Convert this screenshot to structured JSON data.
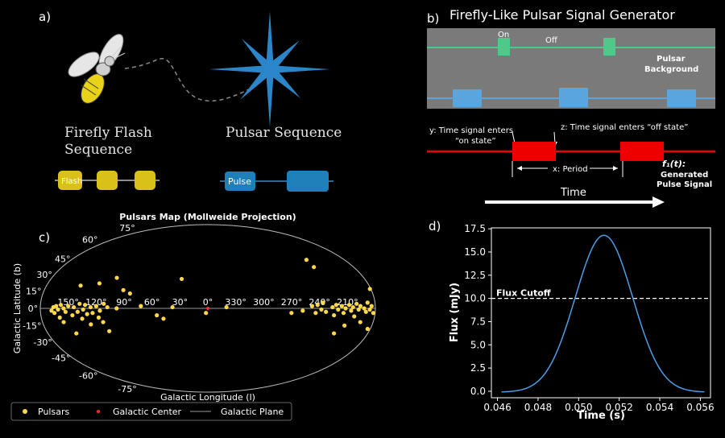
{
  "panel_a": {
    "label": "a)",
    "firefly_title_line1": "Firefly Flash",
    "firefly_title_line2": "Sequence",
    "pulsar_title": "Pulsar Sequence",
    "flash_label": "Flash",
    "pulse_label": "Pulse",
    "colors": {
      "flash": "#d9c11a",
      "pulse": "#1f7fb8",
      "star": "#2a86c9"
    }
  },
  "panel_b": {
    "label": "b)",
    "title": "Firefly-Like Pulsar Signal Generator",
    "on_label": "On",
    "off_label": "Off",
    "background_line1": "Pulsar",
    "background_line2": "Background",
    "y_line1": "y: Time signal enters",
    "y_line2": "“on state”",
    "z_label": "z: Time signal enters “off state”",
    "period_label": "x: Period",
    "f_label": "f₁(t):",
    "generated_line1": "Generated",
    "generated_line2": "Pulse Signal",
    "time_label": "Time",
    "colors": {
      "green": "#4fc98a",
      "blue": "#5aa6dc",
      "red": "#ee0000",
      "box": "#7a7a7a"
    }
  },
  "panel_c": {
    "label": "c)",
    "chart_data": {
      "type": "scatter",
      "title": "Pulsars Map (Mollweide Projection)",
      "xlabel": "Galactic Longitude (l)",
      "ylabel": "Galactic Latitude (b)",
      "lat_ticks": [
        "75°",
        "60°",
        "45°",
        "30°",
        "15°",
        "0°",
        "-15°",
        "-30°",
        "-45°",
        "-60°",
        "-75°"
      ],
      "lon_ticks": [
        "150°",
        "120°",
        "90°",
        "60°",
        "30°",
        "0°",
        "330°",
        "300°",
        "270°",
        "240°",
        "210°"
      ],
      "legend": [
        "Pulsars",
        "Galactic Center",
        "Galactic Plane"
      ],
      "pulsars": [
        {
          "l": 168,
          "b": -2
        },
        {
          "l": 166,
          "b": 1
        },
        {
          "l": 165,
          "b": -4
        },
        {
          "l": 163,
          "b": 2
        },
        {
          "l": 161,
          "b": -1
        },
        {
          "l": 160,
          "b": -8
        },
        {
          "l": 158,
          "b": 3
        },
        {
          "l": 157,
          "b": -12
        },
        {
          "l": 155,
          "b": 0
        },
        {
          "l": 153,
          "b": -3
        },
        {
          "l": 150,
          "b": 2
        },
        {
          "l": 148,
          "b": -22
        },
        {
          "l": 146,
          "b": -6
        },
        {
          "l": 144,
          "b": 1
        },
        {
          "l": 142,
          "b": 20
        },
        {
          "l": 140,
          "b": -3
        },
        {
          "l": 138,
          "b": 4
        },
        {
          "l": 136,
          "b": -9
        },
        {
          "l": 134,
          "b": -1
        },
        {
          "l": 132,
          "b": 3
        },
        {
          "l": 130,
          "b": -5
        },
        {
          "l": 128,
          "b": -14
        },
        {
          "l": 126,
          "b": 1
        },
        {
          "l": 124,
          "b": -4
        },
        {
          "l": 122,
          "b": 22
        },
        {
          "l": 120,
          "b": 2
        },
        {
          "l": 118,
          "b": -8
        },
        {
          "l": 116,
          "b": -2
        },
        {
          "l": 114,
          "b": -12
        },
        {
          "l": 112,
          "b": 4
        },
        {
          "l": 110,
          "b": -20
        },
        {
          "l": 108,
          "b": 1
        },
        {
          "l": 105,
          "b": 27
        },
        {
          "l": 98,
          "b": 0
        },
        {
          "l": 93,
          "b": 16
        },
        {
          "l": 85,
          "b": 13
        },
        {
          "l": 72,
          "b": 2
        },
        {
          "l": 55,
          "b": -6
        },
        {
          "l": 48,
          "b": -9
        },
        {
          "l": 38,
          "b": 1
        },
        {
          "l": 30,
          "b": 26
        },
        {
          "l": 2,
          "b": -4
        },
        {
          "l": 340,
          "b": 1
        },
        {
          "l": 270,
          "b": -4
        },
        {
          "l": 258,
          "b": -2
        },
        {
          "l": 248,
          "b": 2
        },
        {
          "l": 244,
          "b": -4
        },
        {
          "l": 242,
          "b": 3
        },
        {
          "l": 238,
          "b": -1
        },
        {
          "l": 236,
          "b": 5
        },
        {
          "l": 233,
          "b": -3
        },
        {
          "l": 230,
          "b": 44
        },
        {
          "l": 229,
          "b": 37
        },
        {
          "l": 226,
          "b": 1
        },
        {
          "l": 224,
          "b": -6
        },
        {
          "l": 222,
          "b": 3
        },
        {
          "l": 220,
          "b": -1
        },
        {
          "l": 218,
          "b": -22
        },
        {
          "l": 216,
          "b": 2
        },
        {
          "l": 214,
          "b": -4
        },
        {
          "l": 212,
          "b": 0
        },
        {
          "l": 210,
          "b": -15
        },
        {
          "l": 208,
          "b": 3
        },
        {
          "l": 206,
          "b": -2
        },
        {
          "l": 204,
          "b": 1
        },
        {
          "l": 202,
          "b": -7
        },
        {
          "l": 200,
          "b": 4
        },
        {
          "l": 198,
          "b": -1
        },
        {
          "l": 196,
          "b": 2
        },
        {
          "l": 194,
          "b": -12
        },
        {
          "l": 192,
          "b": 0
        },
        {
          "l": 190,
          "b": -3
        },
        {
          "l": 188,
          "b": 5
        },
        {
          "l": 186,
          "b": -1
        },
        {
          "l": 184,
          "b": 2
        },
        {
          "l": 183,
          "b": -18
        },
        {
          "l": 182,
          "b": -4
        },
        {
          "l": 181,
          "b": 17
        }
      ],
      "galactic_center": {
        "l": 0,
        "b": 0
      },
      "colors": {
        "pulsar": "#ffd84a",
        "center": "#ff2a2a",
        "plane": "#9a9a9a"
      }
    }
  },
  "panel_d": {
    "label": "d)",
    "chart_data": {
      "type": "line",
      "xlabel": "Time (s)",
      "ylabel": "Flux (mJy)",
      "xlim": [
        0.0457,
        0.0565
      ],
      "ylim": [
        -0.7,
        17.6
      ],
      "x_ticks": [
        "0.046",
        "0.048",
        "0.050",
        "0.052",
        "0.054",
        "0.056"
      ],
      "x_tick_values": [
        0.046,
        0.048,
        0.05,
        0.052,
        0.054,
        0.056
      ],
      "y_ticks": [
        "0.0",
        "2.5",
        "5.0",
        "7.5",
        "10.0",
        "12.5",
        "15.0",
        "17.5"
      ],
      "y_tick_values": [
        0,
        2.5,
        5,
        7.5,
        10,
        12.5,
        15,
        17.5
      ],
      "curve": {
        "type": "gaussian",
        "peak": 16.8,
        "center": 0.05125,
        "sigma": 0.00141,
        "x_start": 0.0462,
        "x_end": 0.0562,
        "baseline": -0.1
      },
      "cutoff": {
        "value": 10.0,
        "label": "Flux Cutoff"
      },
      "colors": {
        "line": "#4a9ee6",
        "cutoff": "#ffffff"
      }
    }
  }
}
